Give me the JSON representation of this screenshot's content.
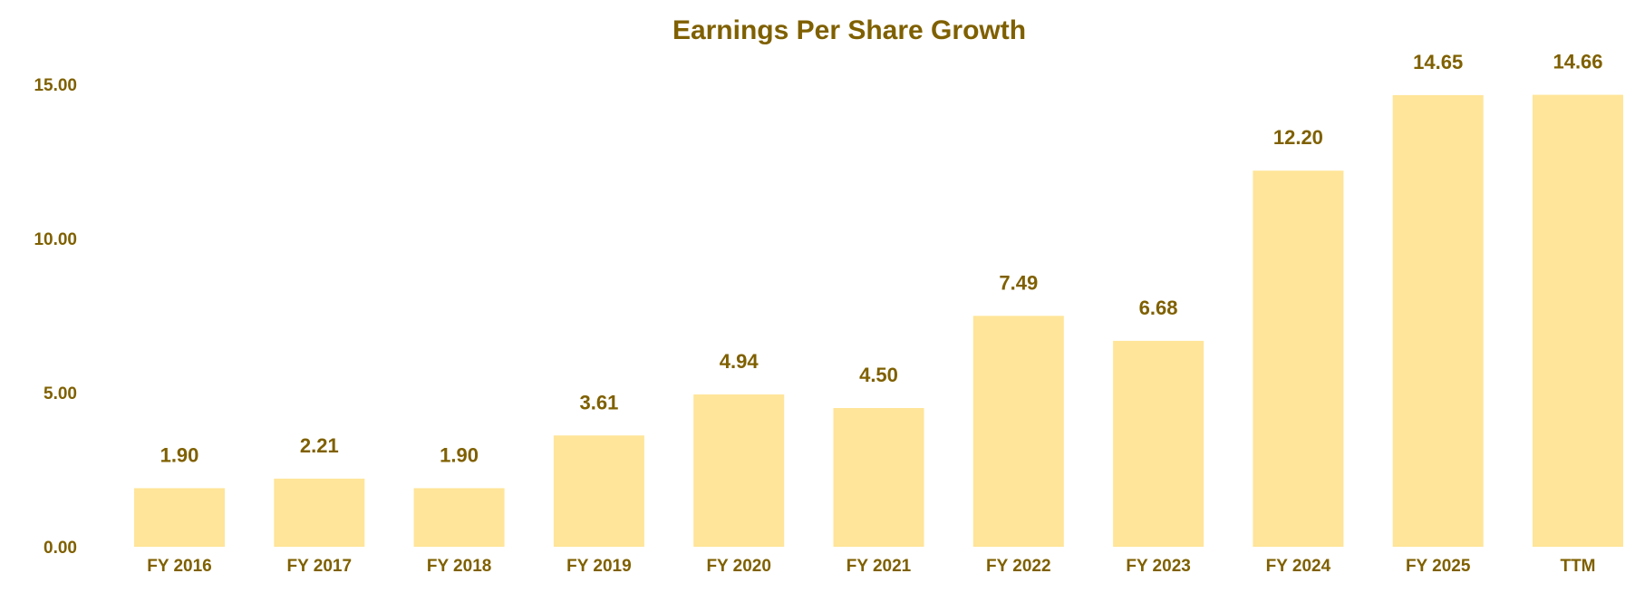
{
  "chart_data": {
    "type": "bar",
    "title": "Earnings Per Share Growth",
    "xlabel": "",
    "ylabel": "",
    "categories": [
      "FY 2016",
      "FY 2017",
      "FY 2018",
      "FY 2019",
      "FY 2020",
      "FY 2021",
      "FY 2022",
      "FY 2023",
      "FY 2024",
      "FY 2025",
      "TTM"
    ],
    "values": [
      1.9,
      2.21,
      1.9,
      3.61,
      4.94,
      4.5,
      7.49,
      6.68,
      12.2,
      14.65,
      14.66
    ],
    "value_labels": [
      "1.90",
      "2.21",
      "1.90",
      "3.61",
      "4.94",
      "4.50",
      "7.49",
      "6.68",
      "12.20",
      "14.65",
      "14.66"
    ],
    "yticks": [
      0,
      5,
      10,
      15
    ],
    "ytick_labels": [
      "0.00",
      "5.00",
      "10.00",
      "15.00"
    ],
    "ylim": [
      0,
      15
    ],
    "grid": false,
    "legend": "none",
    "colors": {
      "bar": "#FFE599",
      "text": "#7F6000"
    }
  }
}
